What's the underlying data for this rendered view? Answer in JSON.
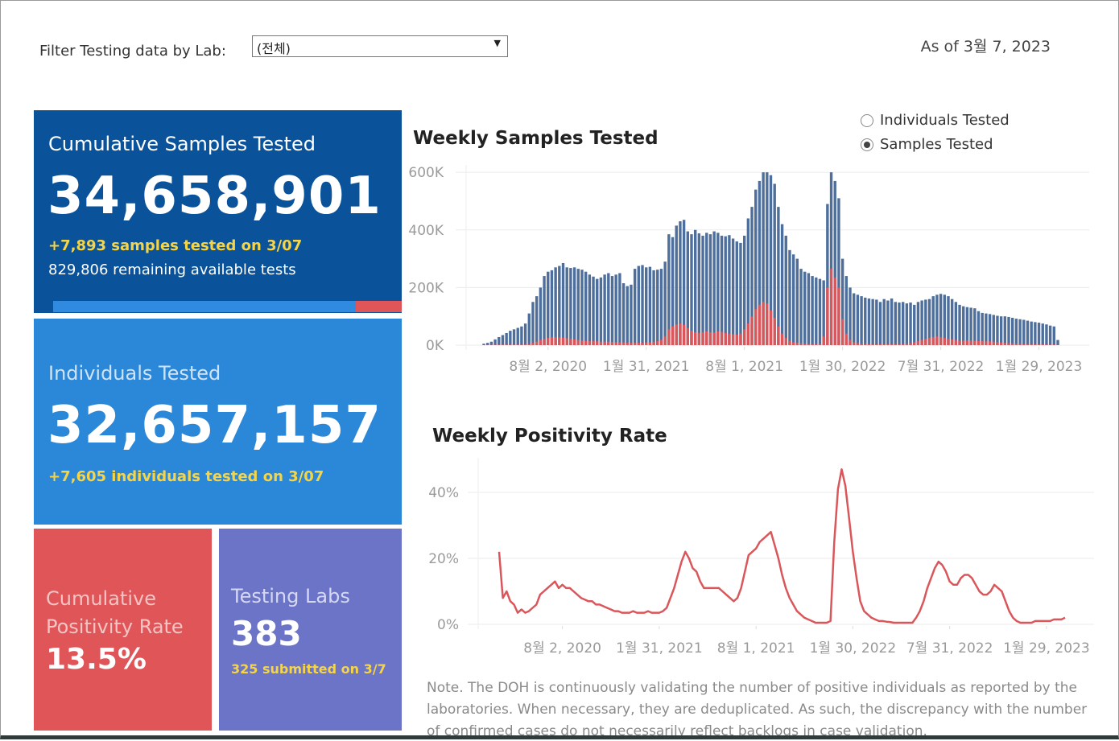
{
  "header": {
    "filter_label": "Filter Testing data by Lab:",
    "filter_value": "(전체)",
    "as_of": "As of 3월 7, 2023"
  },
  "cards": [
    {
      "title": "Cumulative Samples Tested",
      "value": "34,658,901",
      "change": "+7,893 samples tested on 3/07",
      "note": "829,806 remaining available tests"
    },
    {
      "title": "Individuals Tested",
      "value": "32,657,157",
      "change": "+7,605 individuals tested on 3/07"
    },
    {
      "title": "Cumulative Positivity Rate",
      "value": "13.5%"
    },
    {
      "title": "Testing Labs",
      "value": "383",
      "change": "325 submitted on 3/7"
    }
  ],
  "toggle": {
    "options": [
      "Individuals Tested",
      "Samples Tested"
    ],
    "selected": 1
  },
  "chart_data": [
    {
      "type": "bar",
      "title": "Weekly Samples Tested",
      "x": [
        "2020-04-05",
        "2020-04-12",
        "2020-04-19",
        "2020-04-26",
        "2020-05-03",
        "2020-05-10",
        "2020-05-17",
        "2020-05-24",
        "2020-05-31",
        "2020-06-07",
        "2020-06-14",
        "2020-06-21",
        "2020-06-28",
        "2020-07-05",
        "2020-07-12",
        "2020-07-19",
        "2020-07-26",
        "2020-08-02",
        "2020-08-09",
        "2020-08-16",
        "2020-08-23",
        "2020-08-30",
        "2020-09-06",
        "2020-09-13",
        "2020-09-20",
        "2020-09-27",
        "2020-10-04",
        "2020-10-11",
        "2020-10-18",
        "2020-10-25",
        "2020-11-01",
        "2020-11-08",
        "2020-11-15",
        "2020-11-22",
        "2020-11-29",
        "2020-12-06",
        "2020-12-13",
        "2020-12-20",
        "2020-12-27",
        "2021-01-03",
        "2021-01-10",
        "2021-01-17",
        "2021-01-24",
        "2021-01-31",
        "2021-02-07",
        "2021-02-14",
        "2021-02-21",
        "2021-02-28",
        "2021-03-07",
        "2021-03-14",
        "2021-03-21",
        "2021-03-28",
        "2021-04-04",
        "2021-04-11",
        "2021-04-18",
        "2021-04-25",
        "2021-05-02",
        "2021-05-09",
        "2021-05-16",
        "2021-05-23",
        "2021-05-30",
        "2021-06-06",
        "2021-06-13",
        "2021-06-20",
        "2021-06-27",
        "2021-07-04",
        "2021-07-11",
        "2021-07-18",
        "2021-07-25",
        "2021-08-01",
        "2021-08-08",
        "2021-08-15",
        "2021-08-22",
        "2021-08-29",
        "2021-09-05",
        "2021-09-12",
        "2021-09-19",
        "2021-09-26",
        "2021-10-03",
        "2021-10-10",
        "2021-10-17",
        "2021-10-24",
        "2021-10-31",
        "2021-11-07",
        "2021-11-14",
        "2021-11-21",
        "2021-11-28",
        "2021-12-05",
        "2021-12-12",
        "2021-12-19",
        "2021-12-26",
        "2022-01-02",
        "2022-01-09",
        "2022-01-16",
        "2022-01-23",
        "2022-01-30",
        "2022-02-06",
        "2022-02-13",
        "2022-02-20",
        "2022-02-27",
        "2022-03-06",
        "2022-03-13",
        "2022-03-20",
        "2022-03-27",
        "2022-04-03",
        "2022-04-10",
        "2022-04-17",
        "2022-04-24",
        "2022-05-01",
        "2022-05-08",
        "2022-05-15",
        "2022-05-22",
        "2022-05-29",
        "2022-06-05",
        "2022-06-12",
        "2022-06-19",
        "2022-06-26",
        "2022-07-03",
        "2022-07-10",
        "2022-07-17",
        "2022-07-24",
        "2022-07-31",
        "2022-08-07",
        "2022-08-14",
        "2022-08-21",
        "2022-08-28",
        "2022-09-04",
        "2022-09-11",
        "2022-09-18",
        "2022-09-25",
        "2022-10-02",
        "2022-10-09",
        "2022-10-16",
        "2022-10-23",
        "2022-10-30",
        "2022-11-06",
        "2022-11-13",
        "2022-11-20",
        "2022-11-27",
        "2022-12-04",
        "2022-12-11",
        "2022-12-18",
        "2022-12-25",
        "2023-01-01",
        "2023-01-08",
        "2023-01-15",
        "2023-01-22",
        "2023-01-29",
        "2023-02-05",
        "2023-02-12",
        "2023-02-19",
        "2023-02-26",
        "2023-03-05"
      ],
      "series": [
        {
          "color": "#4e6f9b",
          "values": [
            5000,
            8000,
            12000,
            20000,
            28000,
            35000,
            42000,
            50000,
            55000,
            60000,
            65000,
            75000,
            110000,
            150000,
            170000,
            200000,
            240000,
            255000,
            260000,
            270000,
            275000,
            285000,
            270000,
            268000,
            270000,
            265000,
            262000,
            255000,
            245000,
            238000,
            230000,
            235000,
            245000,
            250000,
            240000,
            245000,
            250000,
            215000,
            205000,
            210000,
            265000,
            275000,
            278000,
            270000,
            272000,
            260000,
            262000,
            265000,
            290000,
            385000,
            375000,
            415000,
            430000,
            435000,
            395000,
            385000,
            400000,
            388000,
            380000,
            390000,
            385000,
            395000,
            390000,
            380000,
            378000,
            382000,
            370000,
            360000,
            355000,
            380000,
            440000,
            480000,
            540000,
            570000,
            600000,
            600000,
            590000,
            560000,
            480000,
            420000,
            380000,
            330000,
            315000,
            300000,
            265000,
            255000,
            250000,
            240000,
            235000,
            230000,
            225000,
            490000,
            600000,
            570000,
            510000,
            300000,
            240000,
            200000,
            180000,
            175000,
            170000,
            165000,
            162000,
            160000,
            158000,
            150000,
            160000,
            155000,
            162000,
            150000,
            148000,
            150000,
            145000,
            148000,
            140000,
            150000,
            155000,
            158000,
            160000,
            170000,
            175000,
            178000,
            175000,
            170000,
            160000,
            150000,
            140000,
            135000,
            132000,
            130000,
            128000,
            118000,
            112000,
            110000,
            108000,
            105000,
            102000,
            100000,
            100000,
            98000,
            95000,
            92000,
            90000,
            88000,
            85000,
            82000,
            80000,
            78000,
            75000,
            72000,
            68000,
            65000,
            18000
          ]
        },
        {
          "color": "#d9575b",
          "values": [
            500,
            1000,
            1000,
            1500,
            2000,
            2000,
            2000,
            2000,
            2000,
            2000,
            2000,
            3000,
            4000,
            8000,
            12000,
            18000,
            22000,
            25000,
            28000,
            28000,
            27000,
            26000,
            24000,
            22000,
            20000,
            18000,
            16000,
            15000,
            14000,
            14000,
            13000,
            12000,
            12000,
            12000,
            11000,
            10000,
            10000,
            9000,
            8000,
            8000,
            8000,
            8000,
            8000,
            9000,
            10000,
            12000,
            14000,
            18000,
            30000,
            55000,
            65000,
            72000,
            75000,
            70000,
            60000,
            50000,
            45000,
            42000,
            45000,
            48000,
            45000,
            44000,
            48000,
            46000,
            42000,
            40000,
            38000,
            36000,
            40000,
            55000,
            75000,
            100000,
            125000,
            140000,
            150000,
            145000,
            120000,
            95000,
            65000,
            40000,
            25000,
            15000,
            10000,
            8000,
            6000,
            5000,
            4000,
            4000,
            4000,
            5000,
            30000,
            200000,
            265000,
            235000,
            200000,
            90000,
            40000,
            18000,
            10000,
            7000,
            5000,
            4000,
            4000,
            3000,
            3000,
            3000,
            3000,
            3000,
            3000,
            3000,
            3000,
            4000,
            5000,
            7000,
            10000,
            14000,
            18000,
            22000,
            25000,
            28000,
            30000,
            28000,
            25000,
            22000,
            20000,
            18000,
            16000,
            16000,
            17000,
            16000,
            15000,
            14000,
            14000,
            13000,
            13000,
            12000,
            10000,
            9000,
            8000,
            7000,
            6000,
            5000,
            4000,
            3000,
            3000,
            3000,
            3000,
            3000,
            3000,
            2000,
            2000,
            2000,
            1000
          ]
        }
      ],
      "ylim": [
        0,
        620000
      ],
      "yticks": [
        {
          "value": 0,
          "label": "0K"
        },
        {
          "value": 200000,
          "label": "200K"
        },
        {
          "value": 400000,
          "label": "400K"
        },
        {
          "value": 600000,
          "label": "600K"
        }
      ],
      "xticks": [
        {
          "value": "2020-08-02",
          "label": "8월 2, 2020"
        },
        {
          "value": "2021-01-31",
          "label": "1월 31, 2021"
        },
        {
          "value": "2021-08-01",
          "label": "8월 1, 2021"
        },
        {
          "value": "2022-01-30",
          "label": "1월 30, 2022"
        },
        {
          "value": "2022-07-31",
          "label": "7월 31, 2022"
        },
        {
          "value": "2023-01-29",
          "label": "1월 29, 2023"
        }
      ],
      "grid": true
    },
    {
      "type": "line",
      "title": "Weekly Positivity Rate",
      "x": [
        "2020-04-05",
        "2020-04-12",
        "2020-04-19",
        "2020-04-26",
        "2020-05-03",
        "2020-05-10",
        "2020-05-17",
        "2020-05-24",
        "2020-05-31",
        "2020-06-07",
        "2020-06-14",
        "2020-06-21",
        "2020-06-28",
        "2020-07-05",
        "2020-07-12",
        "2020-07-19",
        "2020-07-26",
        "2020-08-02",
        "2020-08-09",
        "2020-08-16",
        "2020-08-23",
        "2020-08-30",
        "2020-09-06",
        "2020-09-13",
        "2020-09-20",
        "2020-09-27",
        "2020-10-04",
        "2020-10-11",
        "2020-10-18",
        "2020-10-25",
        "2020-11-01",
        "2020-11-08",
        "2020-11-15",
        "2020-11-22",
        "2020-11-29",
        "2020-12-06",
        "2020-12-13",
        "2020-12-20",
        "2020-12-27",
        "2021-01-03",
        "2021-01-10",
        "2021-01-17",
        "2021-01-24",
        "2021-01-31",
        "2021-02-07",
        "2021-02-14",
        "2021-02-21",
        "2021-02-28",
        "2021-03-07",
        "2021-03-14",
        "2021-03-21",
        "2021-03-28",
        "2021-04-04",
        "2021-04-11",
        "2021-04-18",
        "2021-04-25",
        "2021-05-02",
        "2021-05-09",
        "2021-05-16",
        "2021-05-23",
        "2021-05-30",
        "2021-06-06",
        "2021-06-13",
        "2021-06-20",
        "2021-06-27",
        "2021-07-04",
        "2021-07-11",
        "2021-07-18",
        "2021-07-25",
        "2021-08-01",
        "2021-08-08",
        "2021-08-15",
        "2021-08-22",
        "2021-08-29",
        "2021-09-05",
        "2021-09-12",
        "2021-09-19",
        "2021-09-26",
        "2021-10-03",
        "2021-10-10",
        "2021-10-17",
        "2021-10-24",
        "2021-10-31",
        "2021-11-07",
        "2021-11-14",
        "2021-11-21",
        "2021-11-28",
        "2021-12-05",
        "2021-12-12",
        "2021-12-19",
        "2021-12-26",
        "2022-01-02",
        "2022-01-09",
        "2022-01-16",
        "2022-01-23",
        "2022-01-30",
        "2022-02-06",
        "2022-02-13",
        "2022-02-20",
        "2022-02-27",
        "2022-03-06",
        "2022-03-13",
        "2022-03-20",
        "2022-03-27",
        "2022-04-03",
        "2022-04-10",
        "2022-04-17",
        "2022-04-24",
        "2022-05-01",
        "2022-05-08",
        "2022-05-15",
        "2022-05-22",
        "2022-05-29",
        "2022-06-05",
        "2022-06-12",
        "2022-06-19",
        "2022-06-26",
        "2022-07-03",
        "2022-07-10",
        "2022-07-17",
        "2022-07-24",
        "2022-07-31",
        "2022-08-07",
        "2022-08-14",
        "2022-08-21",
        "2022-08-28",
        "2022-09-04",
        "2022-09-11",
        "2022-09-18",
        "2022-09-25",
        "2022-10-02",
        "2022-10-09",
        "2022-10-16",
        "2022-10-23",
        "2022-10-30",
        "2022-11-06",
        "2022-11-13",
        "2022-11-20",
        "2022-11-27",
        "2022-12-04",
        "2022-12-11",
        "2022-12-18",
        "2022-12-25",
        "2023-01-01",
        "2023-01-08",
        "2023-01-15",
        "2023-01-22",
        "2023-01-29",
        "2023-02-05",
        "2023-02-12",
        "2023-02-19",
        "2023-02-26",
        "2023-03-05"
      ],
      "series": [
        {
          "color": "#d9575b",
          "values": [
            22,
            8,
            10,
            7,
            6,
            3.5,
            4.5,
            3.5,
            4,
            5,
            6,
            9,
            10,
            11,
            12,
            13,
            11,
            12,
            11,
            11,
            10,
            9,
            8,
            7.5,
            7,
            7,
            6,
            6,
            5.5,
            5,
            4.5,
            4,
            4,
            3.5,
            3.5,
            3.5,
            4,
            3.5,
            3.5,
            3.5,
            4,
            3.5,
            3.5,
            3.5,
            4,
            5,
            8,
            11,
            15,
            19,
            22,
            20,
            17,
            16,
            13,
            11,
            11,
            11,
            11,
            11,
            10,
            9,
            8,
            7,
            8,
            11,
            16,
            21,
            22,
            23,
            25,
            26,
            27,
            28,
            24,
            20,
            15,
            11,
            8,
            6,
            4,
            3,
            2,
            1.5,
            1,
            0.5,
            0.5,
            0.5,
            0.5,
            1,
            25,
            41,
            47,
            42,
            32,
            22,
            14,
            7,
            4,
            3,
            2,
            1.5,
            1,
            1,
            0.8,
            0.7,
            0.5,
            0.5,
            0.5,
            0.5,
            0.5,
            0.5,
            2,
            4,
            7,
            11,
            14,
            17,
            19,
            18,
            16,
            13,
            12,
            12,
            14,
            15,
            15,
            14,
            12,
            10,
            9,
            9,
            10,
            12,
            11,
            10,
            7,
            4,
            2,
            1,
            0.5,
            0.5,
            0.5,
            0.5,
            1,
            1,
            1,
            1,
            1,
            1.5,
            1.5,
            1.5,
            2
          ]
        }
      ],
      "ylim": [
        0,
        50
      ],
      "yticks": [
        {
          "value": 0,
          "label": "0%"
        },
        {
          "value": 20,
          "label": "20%"
        },
        {
          "value": 40,
          "label": "40%"
        }
      ],
      "xticks": [
        {
          "value": "2020-08-02",
          "label": "8월 2, 2020"
        },
        {
          "value": "2021-01-31",
          "label": "1월 31, 2021"
        },
        {
          "value": "2021-08-01",
          "label": "8월 1, 2021"
        },
        {
          "value": "2022-01-30",
          "label": "1월 30, 2022"
        },
        {
          "value": "2022-07-31",
          "label": "7월 31, 2022"
        },
        {
          "value": "2023-01-29",
          "label": "1월 29, 2023"
        }
      ],
      "grid": true
    }
  ],
  "note": "Note. The DOH is continuously validating the number of positive individuals as reported by the laboratories. When necessary, they are deduplicated. As such, the discrepancy with the number of confirmed cases do not necessarily reflect backlogs in case validation."
}
